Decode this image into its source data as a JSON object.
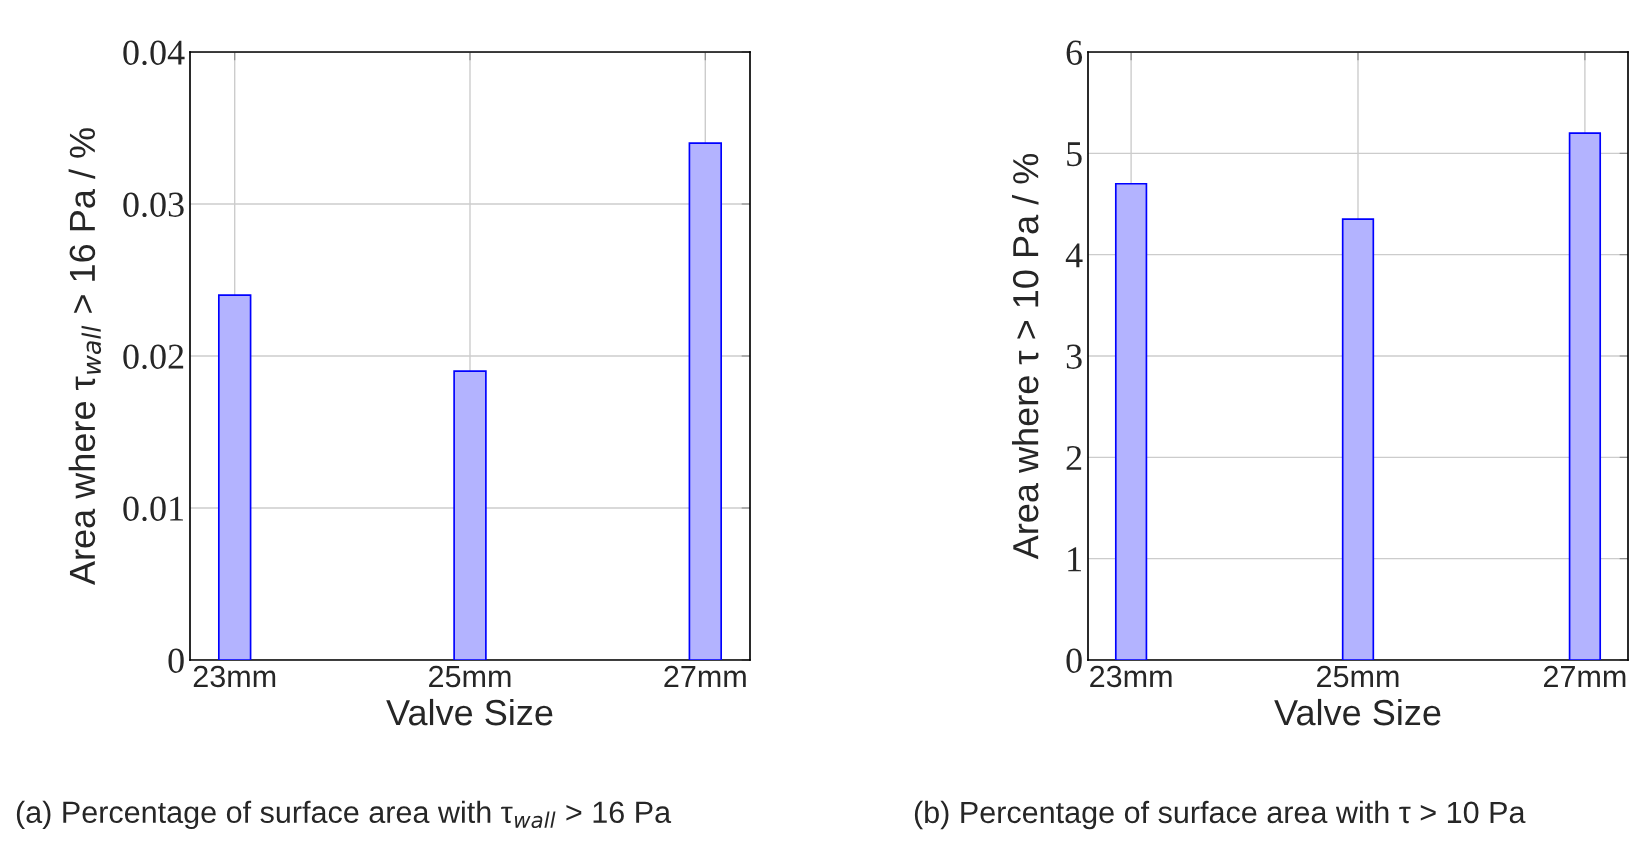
{
  "chart_data": [
    {
      "type": "bar",
      "categories": [
        "23mm",
        "25mm",
        "27mm"
      ],
      "values": [
        0.024,
        0.019,
        0.034
      ],
      "color": "#b3b3ff",
      "xlabel": "Valve Size",
      "ylabel": "Area where τ$_{wall}$ > 16 Pa / %",
      "ylim": [
        0,
        0.04
      ],
      "yticks": [
        0,
        0.01,
        0.02,
        0.03,
        0.04
      ],
      "grid": true,
      "annotations": [
        "(a) Percentage of surface area with τ$_{wall}$ > 16 Pa"
      ]
    },
    {
      "type": "bar",
      "categories": [
        "23mm",
        "25mm",
        "27mm"
      ],
      "values": [
        4.7,
        4.35,
        5.2
      ],
      "color": "#b3b3ff",
      "xlabel": "Valve Size",
      "ylabel": "Area where τ > 10 Pa / %",
      "ylim": [
        0,
        6
      ],
      "yticks": [
        0,
        1,
        2,
        3,
        4,
        5,
        6
      ],
      "grid": true,
      "annotations": [
        "(b) Percentage of surface area with τ > 10 Pa"
      ]
    }
  ]
}
